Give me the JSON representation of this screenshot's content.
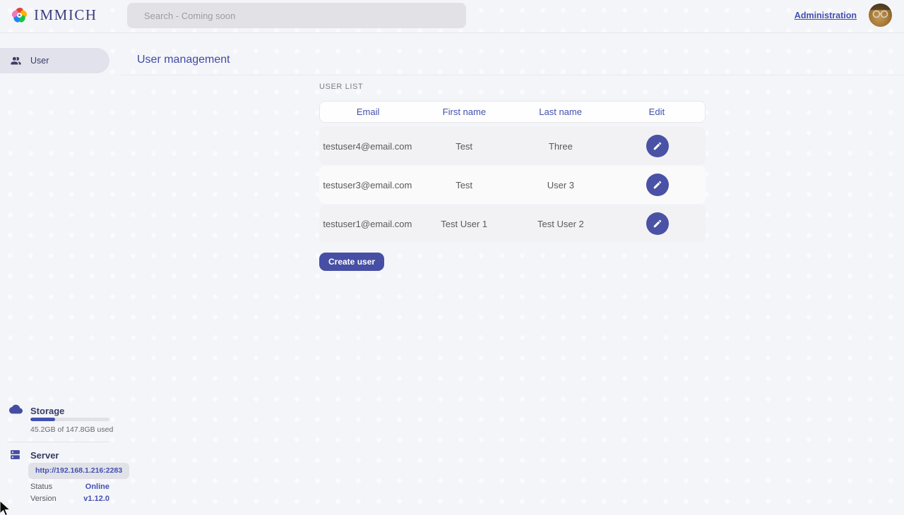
{
  "colors": {
    "primary": "#4250af",
    "page_bg": "#f4f5f9",
    "row_gray": "#f2f2f5",
    "pill_bg": "#e1e2eb"
  },
  "topbar": {
    "app_name": "IMMICH",
    "search_placeholder": "Search - Coming soon",
    "admin_link": "Administration"
  },
  "sidebar": {
    "items": [
      {
        "label": "User",
        "active": true
      }
    ],
    "storage": {
      "label": "Storage",
      "usage_text": "45.2GB of 147.8GB used",
      "progress_pct": 31
    },
    "server": {
      "label": "Server",
      "url": "http://192.168.1.216:2283",
      "status_label": "Status",
      "status_value": "Online",
      "version_label": "Version",
      "version_value": "v1.12.0"
    }
  },
  "main": {
    "title": "User management",
    "section_label": "USER LIST",
    "table": {
      "headers": [
        "Email",
        "First name",
        "Last name",
        "Edit"
      ],
      "rows": [
        {
          "email": "testuser4@email.com",
          "first_name": "Test",
          "last_name": "Three"
        },
        {
          "email": "testuser3@email.com",
          "first_name": "Test",
          "last_name": "User 3"
        },
        {
          "email": "testuser1@email.com",
          "first_name": "Test User 1",
          "last_name": "Test User 2"
        }
      ]
    },
    "create_button": "Create user"
  },
  "icons": {
    "logo": "immich-flower-icon",
    "sidebar_user": "people-icon",
    "storage": "cloud-icon",
    "server": "dns-icon",
    "edit": "pencil-icon",
    "pointer": "mouse-cursor"
  }
}
